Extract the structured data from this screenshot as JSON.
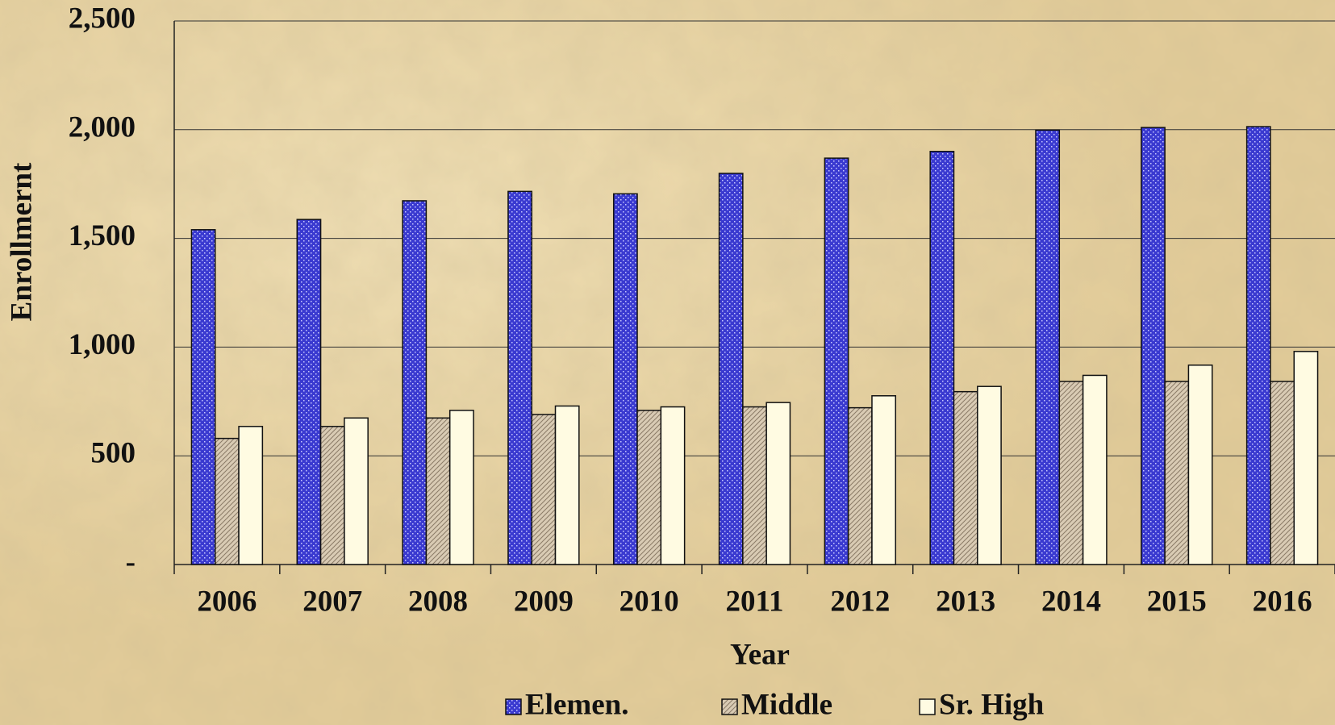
{
  "chart_data": {
    "type": "bar",
    "y_label": "Enrollmernt",
    "x_label": "Year",
    "categories": [
      "2006",
      "2007",
      "2008",
      "2009",
      "2010",
      "2011",
      "2012",
      "2013",
      "2014",
      "2015",
      "2016"
    ],
    "series": [
      {
        "name": "Elemen.",
        "color": "#3a3ad0",
        "values": [
          1540,
          1587,
          1673,
          1716,
          1705,
          1799,
          1869,
          1900,
          1998,
          2010,
          2014
        ]
      },
      {
        "name": "Middle",
        "color": "#d9cbb4",
        "values": [
          580,
          635,
          674,
          690,
          709,
          725,
          721,
          795,
          842,
          842,
          842
        ]
      },
      {
        "name": "Sr. High",
        "color": "#fffbe2",
        "values": [
          635,
          674,
          709,
          729,
          725,
          745,
          776,
          819,
          870,
          917,
          980
        ]
      }
    ],
    "ylim": [
      0,
      2500
    ],
    "yticks": [
      {
        "value": 0,
        "label": "-"
      },
      500,
      {
        "value": 1000,
        "label": "1,000"
      },
      {
        "value": 1500,
        "label": "1,500"
      },
      {
        "value": 2000,
        "label": "2,000"
      },
      {
        "value": 2500,
        "label": "2,500"
      }
    ],
    "grid": true
  }
}
